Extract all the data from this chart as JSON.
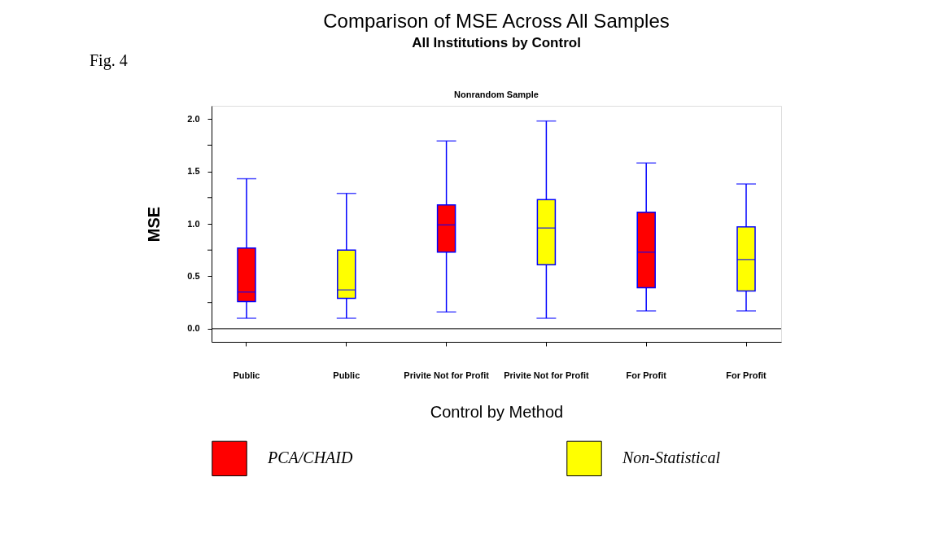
{
  "chart_data": {
    "type": "box",
    "title": "Comparison of MSE Across All Samples",
    "subtitle": "All Institutions by Control",
    "annotations": [
      "Fig. 4",
      "Nonrandom Sample"
    ],
    "xlabel": "Control by Method",
    "ylabel": "MSE",
    "categories": [
      "Public",
      "Public",
      "Privite Not for Profit",
      "Privite Not for Profit",
      "For Profit",
      "For Profit"
    ],
    "series": [
      {
        "name": "PCA/CHAID",
        "color": "#ff0000",
        "boxes": [
          {
            "low": 0.1,
            "q1": 0.26,
            "median": 0.35,
            "q3": 0.77,
            "high": 1.43
          },
          null,
          {
            "low": 0.16,
            "q1": 0.73,
            "median": 0.99,
            "q3": 1.18,
            "high": 1.79
          },
          null,
          {
            "low": 0.17,
            "q1": 0.39,
            "median": 0.73,
            "q3": 1.11,
            "high": 1.58
          },
          null
        ]
      },
      {
        "name": "Non-Statistical",
        "color": "#ffff00",
        "boxes": [
          null,
          {
            "low": 0.1,
            "q1": 0.29,
            "median": 0.37,
            "q3": 0.75,
            "high": 1.29
          },
          null,
          {
            "low": 0.1,
            "q1": 0.61,
            "median": 0.96,
            "q3": 1.23,
            "high": 1.98
          },
          null,
          {
            "low": 0.17,
            "q1": 0.36,
            "median": 0.66,
            "q3": 0.97,
            "high": 1.38
          }
        ]
      }
    ],
    "ylim": [
      -0.125,
      2.125
    ],
    "yticks": [
      {
        "value": 0,
        "label": "0.0"
      },
      {
        "value": 0.25,
        "label": null
      },
      {
        "value": 0.5,
        "label": "0.5"
      },
      {
        "value": 0.75,
        "label": null
      },
      {
        "value": 1,
        "label": "1.0"
      },
      {
        "value": 1.25,
        "label": null
      },
      {
        "value": 1.5,
        "label": "1.5"
      },
      {
        "value": 1.75,
        "label": null
      },
      {
        "value": 2,
        "label": "2.0"
      }
    ],
    "ref_lines": [
      {
        "axis": "y",
        "value": 0,
        "label": null,
        "color": "#000000"
      }
    ],
    "grid": false,
    "legend": "bottom"
  }
}
